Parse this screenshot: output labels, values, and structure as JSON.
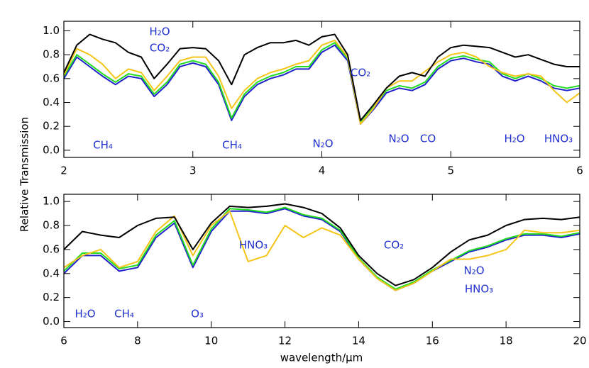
{
  "chart_data": [
    {
      "type": "line",
      "ylabel": "Relative Transmission",
      "x": [
        2.0,
        2.1,
        2.2,
        2.3,
        2.4,
        2.5,
        2.6,
        2.7,
        2.8,
        2.9,
        3.0,
        3.1,
        3.2,
        3.3,
        3.4,
        3.5,
        3.6,
        3.7,
        3.8,
        3.9,
        4.0,
        4.1,
        4.2,
        4.3,
        4.4,
        4.5,
        4.6,
        4.7,
        4.8,
        4.9,
        5.0,
        5.1,
        5.2,
        5.3,
        5.4,
        5.5,
        5.6,
        5.7,
        5.8,
        5.9,
        6.0
      ],
      "series": [
        {
          "color": "#2222cc",
          "values": [
            0.6,
            0.78,
            0.7,
            0.62,
            0.55,
            0.62,
            0.6,
            0.45,
            0.55,
            0.7,
            0.73,
            0.7,
            0.55,
            0.25,
            0.45,
            0.55,
            0.6,
            0.63,
            0.68,
            0.68,
            0.82,
            0.88,
            0.75,
            0.22,
            0.34,
            0.48,
            0.52,
            0.5,
            0.55,
            0.68,
            0.75,
            0.77,
            0.74,
            0.72,
            0.62,
            0.58,
            0.62,
            0.58,
            0.52,
            0.5,
            0.52
          ]
        },
        {
          "color": "#22dd22",
          "values": [
            0.62,
            0.8,
            0.72,
            0.64,
            0.57,
            0.64,
            0.62,
            0.47,
            0.57,
            0.72,
            0.75,
            0.72,
            0.57,
            0.27,
            0.47,
            0.57,
            0.62,
            0.65,
            0.7,
            0.7,
            0.84,
            0.9,
            0.77,
            0.23,
            0.36,
            0.5,
            0.54,
            0.52,
            0.57,
            0.7,
            0.77,
            0.79,
            0.76,
            0.74,
            0.64,
            0.6,
            0.64,
            0.6,
            0.54,
            0.52,
            0.54
          ]
        },
        {
          "color": "#f5c518",
          "values": [
            0.63,
            0.85,
            0.8,
            0.72,
            0.6,
            0.68,
            0.65,
            0.5,
            0.62,
            0.75,
            0.78,
            0.78,
            0.62,
            0.35,
            0.5,
            0.6,
            0.65,
            0.68,
            0.72,
            0.75,
            0.88,
            0.92,
            0.78,
            0.22,
            0.35,
            0.52,
            0.58,
            0.58,
            0.66,
            0.74,
            0.8,
            0.82,
            0.78,
            0.7,
            0.65,
            0.62,
            0.64,
            0.62,
            0.5,
            0.4,
            0.48
          ]
        },
        {
          "color": "#000000",
          "values": [
            0.65,
            0.88,
            0.97,
            0.93,
            0.9,
            0.82,
            0.78,
            0.6,
            0.72,
            0.85,
            0.86,
            0.85,
            0.75,
            0.55,
            0.8,
            0.86,
            0.9,
            0.9,
            0.92,
            0.88,
            0.95,
            0.97,
            0.8,
            0.25,
            0.38,
            0.52,
            0.62,
            0.65,
            0.62,
            0.78,
            0.86,
            0.88,
            0.87,
            0.86,
            0.82,
            0.78,
            0.8,
            0.76,
            0.72,
            0.7,
            0.7
          ]
        }
      ],
      "xlim": [
        2,
        6
      ],
      "xticks": [
        2,
        3,
        4,
        5,
        6
      ],
      "ylim": [
        -0.06,
        1.08
      ],
      "yticks": [
        {
          "value": 0,
          "label": "0.0"
        },
        0.2,
        0.4,
        0.6,
        0.8,
        {
          "value": 1,
          "label": "1.0"
        }
      ],
      "annotations": [
        "H₂O",
        "CO₂",
        "CH₄",
        "CH₄",
        "N₂O",
        "CO₂",
        "N₂O",
        "CO",
        "H₂O",
        "HNO₃"
      ]
    },
    {
      "type": "line",
      "xlabel": "wavelength/μm",
      "x": [
        6,
        6.5,
        7,
        7.5,
        8,
        8.5,
        9,
        9.5,
        10,
        10.5,
        11,
        11.5,
        12,
        12.5,
        13,
        13.5,
        14,
        14.5,
        15,
        15.5,
        16,
        16.5,
        17,
        17.5,
        18,
        18.5,
        19,
        19.5,
        20
      ],
      "series": [
        {
          "color": "#2222cc",
          "values": [
            0.4,
            0.55,
            0.55,
            0.42,
            0.45,
            0.7,
            0.82,
            0.45,
            0.75,
            0.92,
            0.92,
            0.9,
            0.94,
            0.88,
            0.85,
            0.75,
            0.52,
            0.36,
            0.26,
            0.32,
            0.42,
            0.5,
            0.58,
            0.62,
            0.68,
            0.72,
            0.72,
            0.7,
            0.73
          ]
        },
        {
          "color": "#22dd22",
          "values": [
            0.42,
            0.57,
            0.57,
            0.44,
            0.47,
            0.72,
            0.84,
            0.47,
            0.77,
            0.94,
            0.93,
            0.91,
            0.95,
            0.89,
            0.86,
            0.76,
            0.53,
            0.37,
            0.27,
            0.33,
            0.43,
            0.51,
            0.59,
            0.63,
            0.69,
            0.73,
            0.73,
            0.71,
            0.74
          ]
        },
        {
          "color": "#f5c518",
          "values": [
            0.45,
            0.55,
            0.6,
            0.45,
            0.5,
            0.75,
            0.88,
            0.55,
            0.8,
            0.92,
            0.5,
            0.55,
            0.8,
            0.7,
            0.78,
            0.72,
            0.52,
            0.36,
            0.26,
            0.32,
            0.42,
            0.52,
            0.52,
            0.55,
            0.6,
            0.76,
            0.74,
            0.74,
            0.76
          ]
        },
        {
          "color": "#000000",
          "values": [
            0.6,
            0.75,
            0.72,
            0.7,
            0.8,
            0.86,
            0.87,
            0.6,
            0.82,
            0.96,
            0.95,
            0.96,
            0.98,
            0.95,
            0.9,
            0.78,
            0.55,
            0.4,
            0.3,
            0.35,
            0.45,
            0.58,
            0.68,
            0.72,
            0.8,
            0.85,
            0.86,
            0.85,
            0.87
          ]
        }
      ],
      "xlim": [
        6,
        20
      ],
      "xticks": [
        6,
        8,
        10,
        12,
        14,
        16,
        18,
        20
      ],
      "ylim": [
        -0.05,
        1.06
      ],
      "yticks": [
        {
          "value": 0,
          "label": "0.0"
        },
        0.2,
        0.4,
        0.6,
        0.8,
        {
          "value": 1,
          "label": "1.0"
        }
      ],
      "annotations": [
        "HNO₃",
        "CO₂",
        "N₂O",
        "HNO₃",
        "H₂O",
        "CH₄",
        "O₃"
      ]
    }
  ]
}
